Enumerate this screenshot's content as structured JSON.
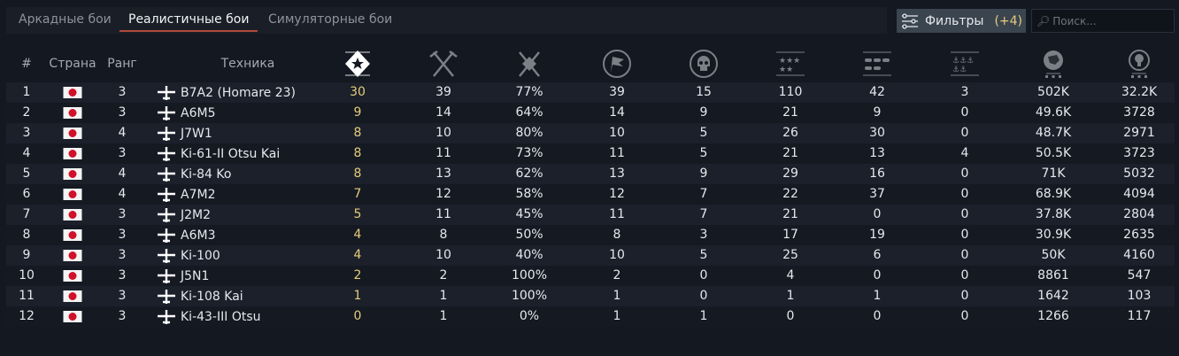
{
  "tabs": [
    {
      "label": "Аркадные бои"
    },
    {
      "label": "Реалистичные бои",
      "active": true
    },
    {
      "label": "Симуляторные бои"
    }
  ],
  "filters": {
    "label": "Фильтры",
    "count": "(+4)",
    "icon": "sliders-icon"
  },
  "search": {
    "placeholder": "Поиск...",
    "icon": "search-icon"
  },
  "colors": {
    "accent": "#b04a3a",
    "highlight": "#e6cc7a",
    "background": "#131821"
  },
  "columns": {
    "num": "#",
    "country": "Страна",
    "rank": "Ранг",
    "vehicle": "Техника",
    "icons": [
      "victories-star-icon",
      "battles-swords-icon",
      "win-rate-swords-star-icon",
      "flag-icon",
      "skull-deaths-icon",
      "air-kills-stars-icon",
      "ground-kills-tanks-icon",
      "naval-kills-anchors-icon",
      "lion-silver-icon",
      "bulb-research-icon"
    ]
  },
  "rows": [
    {
      "n": "1",
      "country": "japan",
      "rank": "3",
      "name": "B7A2 (Homare 23)",
      "v": [
        "30",
        "39",
        "77%",
        "39",
        "15",
        "110",
        "42",
        "3",
        "502K",
        "32.2K"
      ]
    },
    {
      "n": "2",
      "country": "japan",
      "rank": "3",
      "name": "A6M5",
      "v": [
        "9",
        "14",
        "64%",
        "14",
        "9",
        "21",
        "9",
        "0",
        "49.6K",
        "3728"
      ]
    },
    {
      "n": "3",
      "country": "japan",
      "rank": "4",
      "name": "J7W1",
      "v": [
        "8",
        "10",
        "80%",
        "10",
        "5",
        "26",
        "30",
        "0",
        "48.7K",
        "2971"
      ]
    },
    {
      "n": "4",
      "country": "japan",
      "rank": "3",
      "name": "Ki-61-II Otsu Kai",
      "v": [
        "8",
        "11",
        "73%",
        "11",
        "5",
        "21",
        "13",
        "4",
        "50.5K",
        "3723"
      ]
    },
    {
      "n": "5",
      "country": "japan",
      "rank": "4",
      "name": "Ki-84 Ko",
      "v": [
        "8",
        "13",
        "62%",
        "13",
        "9",
        "29",
        "16",
        "0",
        "71K",
        "5032"
      ]
    },
    {
      "n": "6",
      "country": "japan",
      "rank": "4",
      "name": "A7M2",
      "v": [
        "7",
        "12",
        "58%",
        "12",
        "7",
        "22",
        "37",
        "0",
        "68.9K",
        "4094"
      ]
    },
    {
      "n": "7",
      "country": "japan",
      "rank": "3",
      "name": "J2M2",
      "v": [
        "5",
        "11",
        "45%",
        "11",
        "7",
        "21",
        "0",
        "0",
        "37.8K",
        "2804"
      ]
    },
    {
      "n": "8",
      "country": "japan",
      "rank": "3",
      "name": "A6M3",
      "v": [
        "4",
        "8",
        "50%",
        "8",
        "3",
        "17",
        "19",
        "0",
        "30.9K",
        "2635"
      ]
    },
    {
      "n": "9",
      "country": "japan",
      "rank": "3",
      "name": "Ki-100",
      "v": [
        "4",
        "10",
        "40%",
        "10",
        "5",
        "25",
        "6",
        "0",
        "50K",
        "4160"
      ]
    },
    {
      "n": "10",
      "country": "japan",
      "rank": "3",
      "name": "J5N1",
      "v": [
        "2",
        "2",
        "100%",
        "2",
        "0",
        "4",
        "0",
        "0",
        "8861",
        "547"
      ]
    },
    {
      "n": "11",
      "country": "japan",
      "rank": "3",
      "name": "Ki-108 Kai",
      "v": [
        "1",
        "1",
        "100%",
        "1",
        "0",
        "1",
        "1",
        "0",
        "1642",
        "103"
      ]
    },
    {
      "n": "12",
      "country": "japan",
      "rank": "3",
      "name": "Ki-43-III Otsu",
      "v": [
        "0",
        "1",
        "0%",
        "1",
        "1",
        "0",
        "0",
        "0",
        "1266",
        "117"
      ]
    }
  ]
}
